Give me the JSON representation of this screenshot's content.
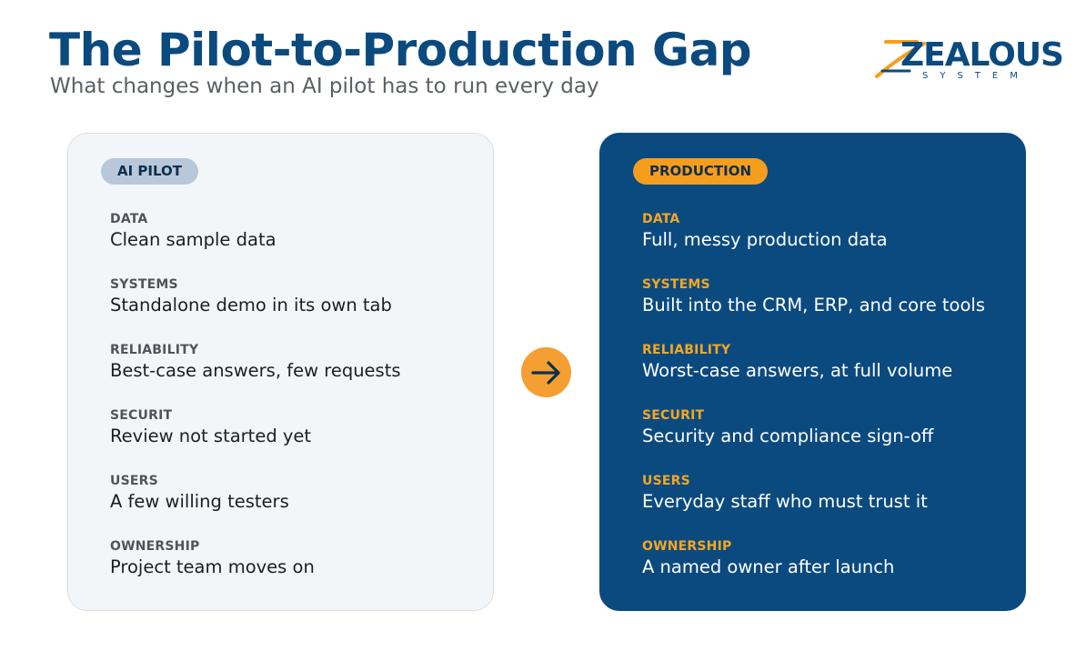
{
  "header": {
    "title": "The Pilot-to-Production Gap",
    "subtitle": "What changes when an AI pilot has to run every day"
  },
  "logo": {
    "word": "ZEALOUS",
    "sub": "SYSTEM"
  },
  "colors": {
    "title_blue": "#0b4a7f",
    "accent_orange": "#f59e1e",
    "pilot_bg": "#f3f6f9",
    "production_bg": "#0b4a7f"
  },
  "pilot": {
    "badge": "AI PILOT",
    "rows": [
      {
        "label": "DATA",
        "value": "Clean sample data"
      },
      {
        "label": "SYSTEMS",
        "value": "Standalone demo in its own tab"
      },
      {
        "label": "RELIABILITY",
        "value": "Best-case answers, few requests"
      },
      {
        "label": "SECURIT",
        "value": "Review not started yet"
      },
      {
        "label": "USERS",
        "value": "A few willing testers"
      },
      {
        "label": "OWNERSHIP",
        "value": "Project team moves on"
      }
    ]
  },
  "production": {
    "badge": "PRODUCTION",
    "rows": [
      {
        "label": "DATA",
        "value": "Full, messy production data"
      },
      {
        "label": "SYSTEMS",
        "value": "Built into the CRM, ERP, and core tools"
      },
      {
        "label": "RELIABILITY",
        "value": "Worst-case answers, at full volume"
      },
      {
        "label": "SECURIT",
        "value": "Security and compliance sign-off"
      },
      {
        "label": "USERS",
        "value": "Everyday staff who must trust it"
      },
      {
        "label": "OWNERSHIP",
        "value": "A named owner after launch"
      }
    ]
  },
  "arrow_icon": "arrow-right-icon"
}
